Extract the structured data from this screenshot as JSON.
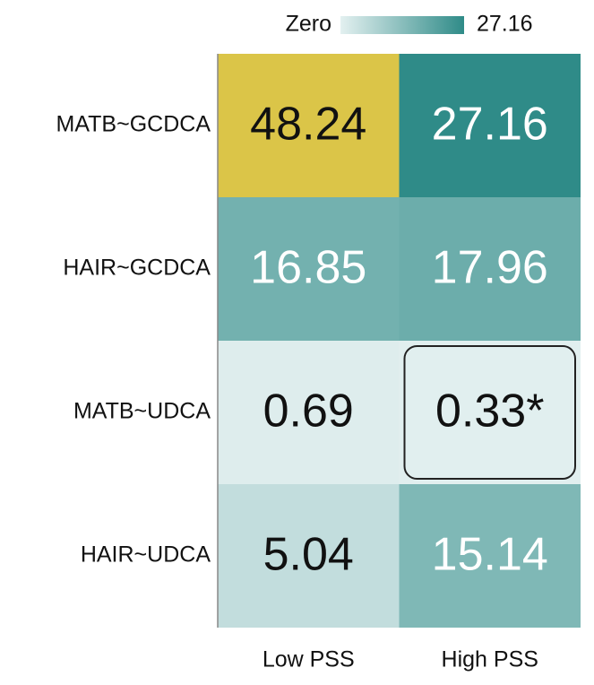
{
  "chart_data": {
    "type": "heatmap",
    "rows": [
      "MATB~GCDCA",
      "HAIR~GCDCA",
      "MATB~UDCA",
      "HAIR~UDCA"
    ],
    "columns": [
      "Low PSS",
      "High PSS"
    ],
    "values": [
      [
        48.24,
        27.16
      ],
      [
        16.85,
        17.96
      ],
      [
        0.69,
        0.33
      ],
      [
        5.04,
        15.14
      ]
    ],
    "value_labels": [
      [
        null,
        null
      ],
      [
        null,
        null
      ],
      [
        null,
        "0.33*"
      ],
      [
        null,
        null
      ]
    ],
    "colorbar_ticks": [
      {
        "value": 0,
        "label": "Zero"
      },
      27.16
    ],
    "cmap": [
      "#e3f0f0",
      "#2f8b88"
    ],
    "over_color": "#dbc548",
    "highlight_cells": [
      [
        2,
        1
      ]
    ]
  }
}
